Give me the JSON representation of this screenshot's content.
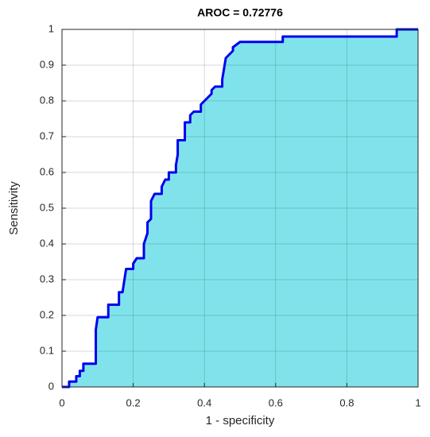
{
  "chart_data": {
    "type": "area",
    "title": "AROC = 0.72776",
    "x_label": "1 - specificity",
    "y_label": "Sensitivity",
    "x": [
      0,
      0.02,
      0.02,
      0.04,
      0.04,
      0.05,
      0.05,
      0.06,
      0.06,
      0.095,
      0.095,
      0.1,
      0.13,
      0.13,
      0.16,
      0.16,
      0.17,
      0.18,
      0.2,
      0.2,
      0.21,
      0.23,
      0.23,
      0.24,
      0.24,
      0.25,
      0.25,
      0.26,
      0.28,
      0.28,
      0.29,
      0.3,
      0.3,
      0.32,
      0.32,
      0.325,
      0.325,
      0.345,
      0.345,
      0.36,
      0.36,
      0.37,
      0.39,
      0.39,
      0.4,
      0.41,
      0.42,
      0.42,
      0.43,
      0.45,
      0.45,
      0.455,
      0.46,
      0.47,
      0.48,
      0.48,
      0.5,
      0.62,
      0.62,
      0.94,
      0.94,
      1
    ],
    "series": [
      {
        "name": "ROC",
        "color": "#0000ee",
        "fill": "#80e3eb",
        "values": [
          0,
          0,
          0.015,
          0.015,
          0.03,
          0.03,
          0.045,
          0.045,
          0.065,
          0.065,
          0.16,
          0.195,
          0.195,
          0.23,
          0.23,
          0.265,
          0.265,
          0.33,
          0.33,
          0.345,
          0.36,
          0.36,
          0.4,
          0.43,
          0.46,
          0.47,
          0.52,
          0.54,
          0.54,
          0.56,
          0.58,
          0.58,
          0.6,
          0.6,
          0.62,
          0.65,
          0.69,
          0.69,
          0.74,
          0.74,
          0.76,
          0.77,
          0.77,
          0.79,
          0.8,
          0.81,
          0.82,
          0.83,
          0.84,
          0.84,
          0.86,
          0.89,
          0.92,
          0.93,
          0.94,
          0.95,
          0.965,
          0.965,
          0.98,
          0.98,
          1,
          1
        ]
      }
    ],
    "xlim": [
      0,
      1
    ],
    "ylim": [
      0,
      1
    ],
    "xticks": [
      0,
      0.2,
      0.4,
      0.6,
      0.8,
      1
    ],
    "yticks": [
      0,
      0.1,
      0.2,
      0.3,
      0.4,
      0.5,
      0.6,
      0.7,
      0.8,
      0.9,
      1
    ],
    "grid": true
  }
}
